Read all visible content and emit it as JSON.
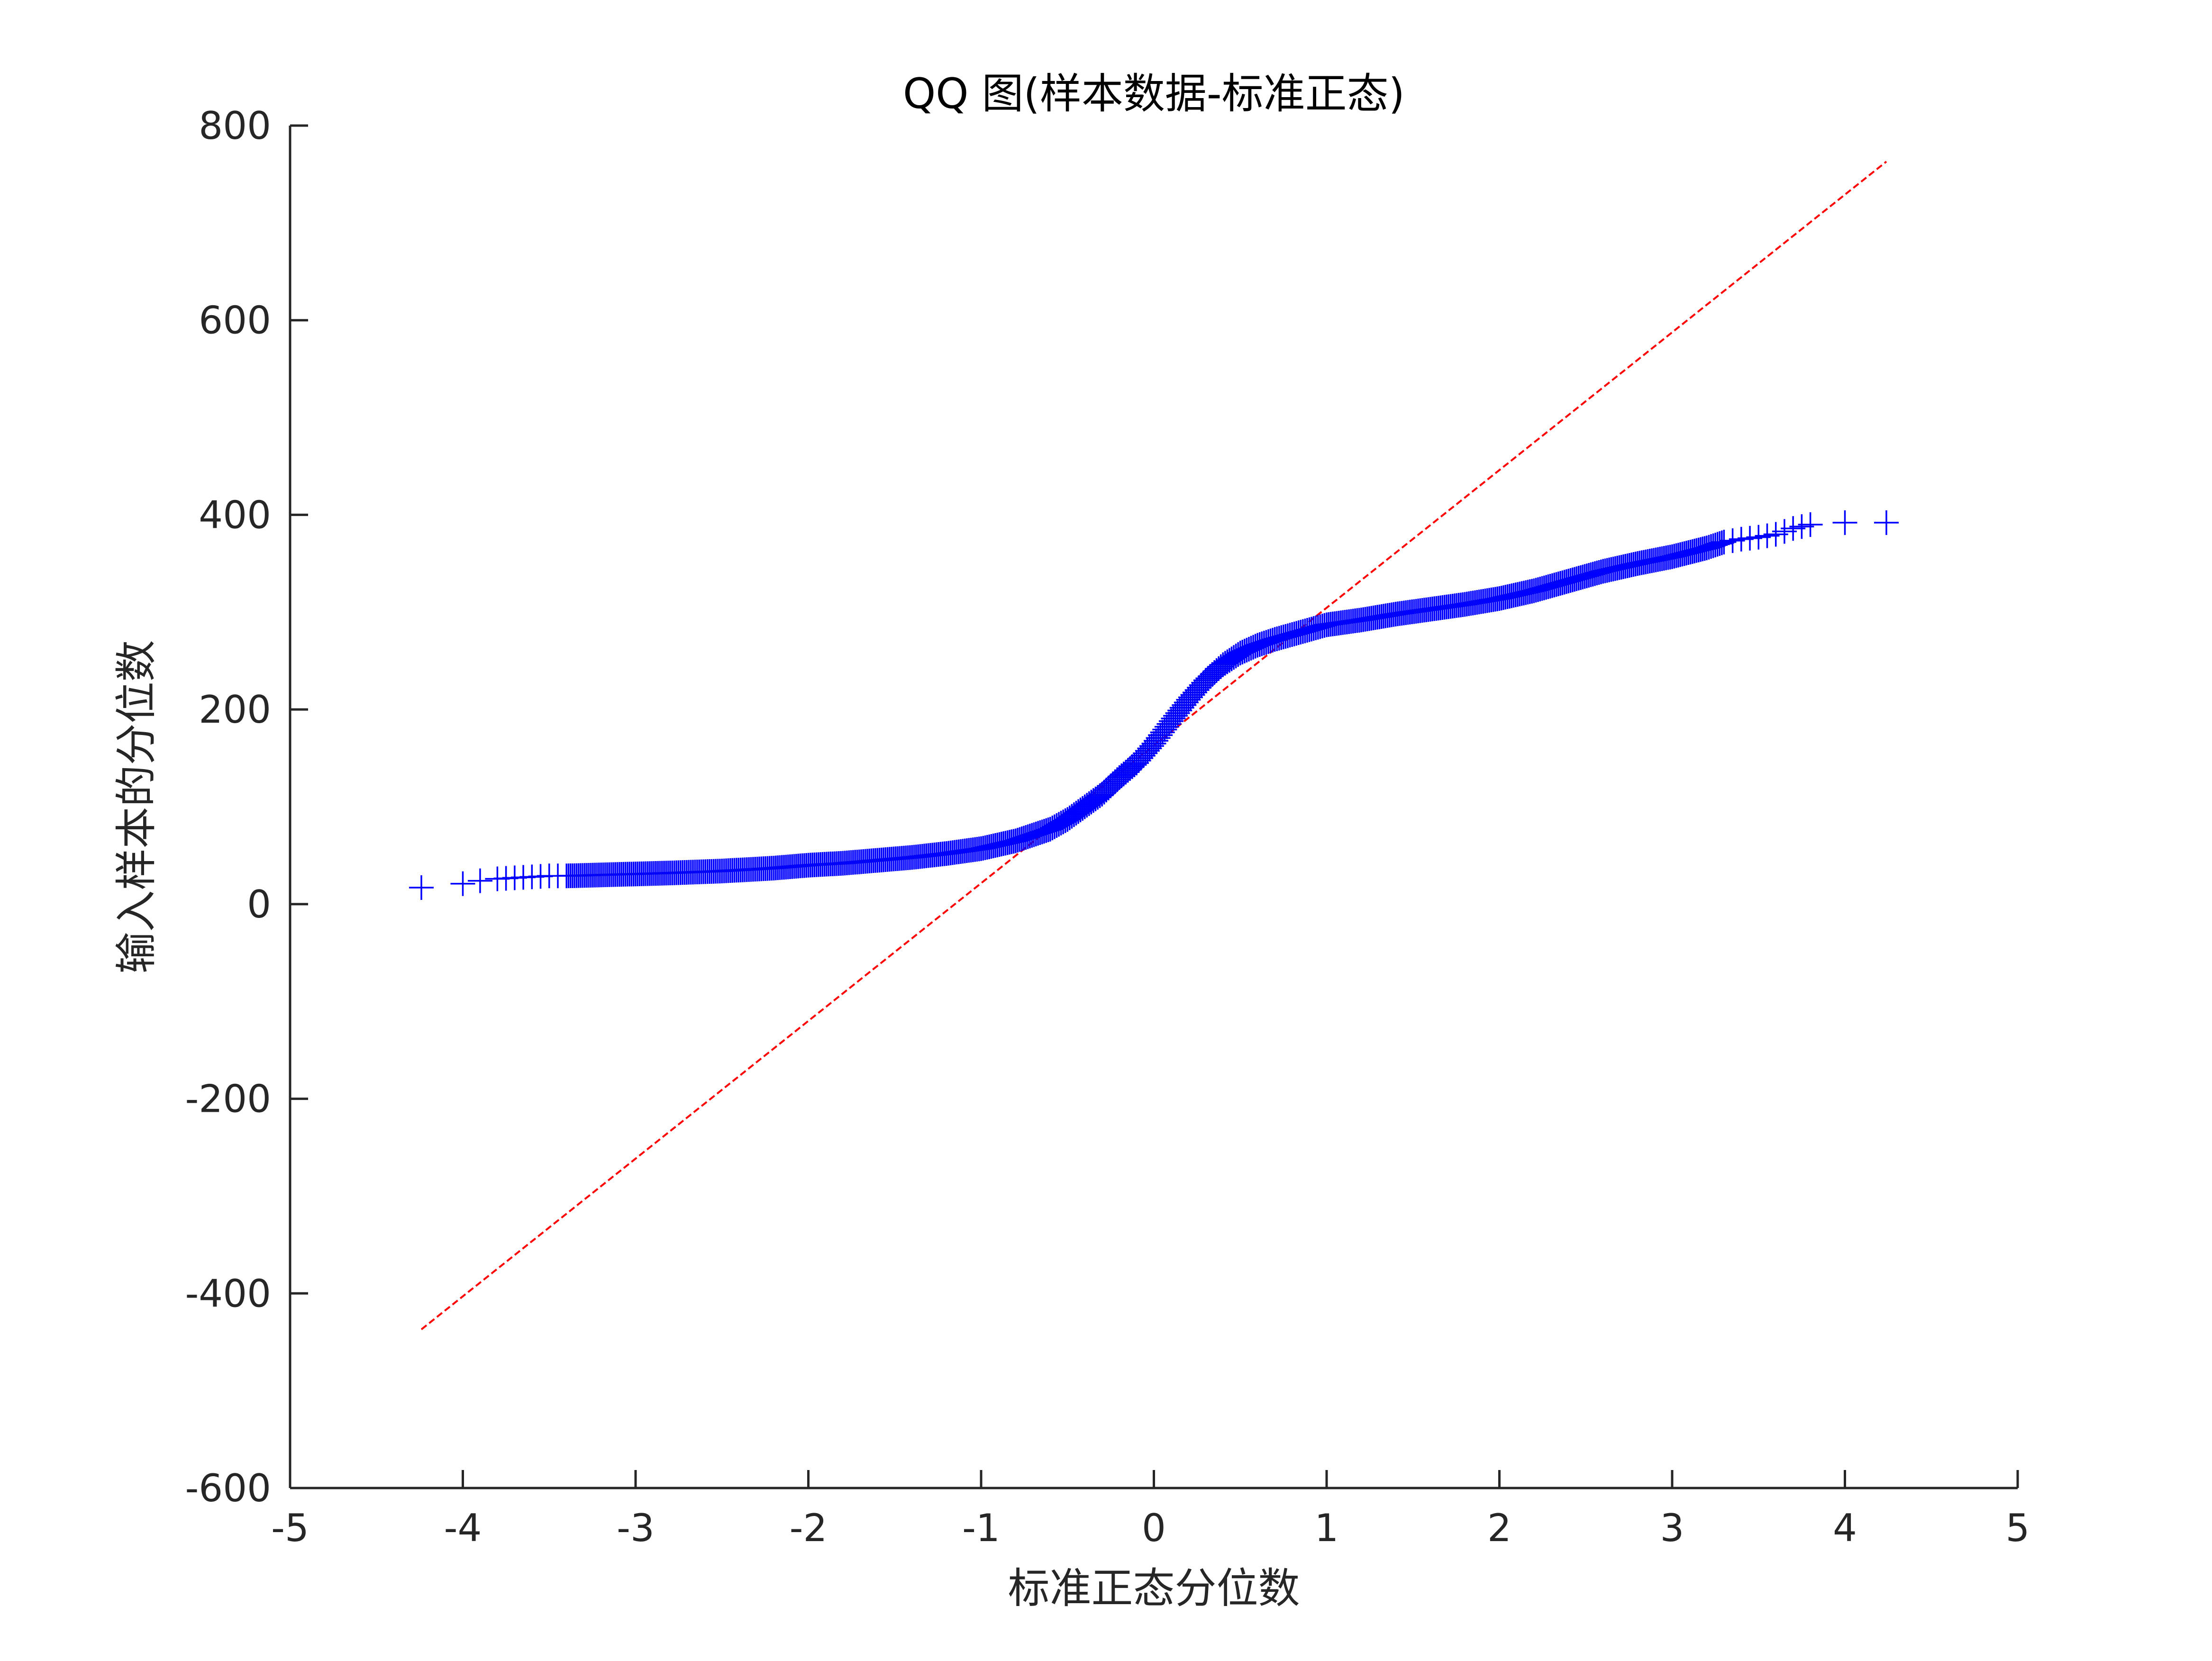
{
  "chart_data": {
    "type": "scatter",
    "title": "QQ 图(样本数据-标准正态)",
    "xlabel": "标准正态分位数",
    "ylabel": "输入样本的分位数",
    "xlim": [
      -5,
      5
    ],
    "ylim": [
      -600,
      800
    ],
    "xticks": [
      "-5",
      "-4",
      "-3",
      "-2",
      "-1",
      "0",
      "1",
      "2",
      "3",
      "4",
      "5"
    ],
    "yticks": [
      "-600",
      "-400",
      "-200",
      "0",
      "200",
      "400",
      "600",
      "800"
    ],
    "grid": false,
    "marker": "+",
    "colors": {
      "points": "#0000ff",
      "reference_line": "#ff0000",
      "axes": "#262626"
    },
    "series": [
      {
        "kind": "points",
        "x": [
          -4.24,
          -4.0,
          -3.9,
          -3.8,
          -3.7,
          -3.6,
          -3.5,
          -3.4,
          -3.2,
          -3.0,
          -2.8,
          -2.5,
          -2.2,
          -2.0,
          -1.8,
          -1.6,
          -1.4,
          -1.2,
          -1.0,
          -0.8,
          -0.6,
          -0.5,
          -0.4,
          -0.3,
          -0.2,
          -0.1,
          0.0,
          0.1,
          0.2,
          0.3,
          0.4,
          0.5,
          0.6,
          0.7,
          0.8,
          0.9,
          1.0,
          1.2,
          1.4,
          1.6,
          1.8,
          2.0,
          2.2,
          2.4,
          2.6,
          2.8,
          3.0,
          3.2,
          3.3,
          3.4,
          3.5,
          3.6,
          3.7,
          3.8,
          4.0,
          4.24
        ],
        "y": [
          17,
          21,
          24,
          26,
          27,
          28,
          29,
          29,
          30,
          31,
          32,
          34,
          37,
          40,
          42,
          45,
          48,
          52,
          57,
          65,
          77,
          87,
          100,
          113,
          130,
          145,
          165,
          188,
          210,
          230,
          246,
          258,
          266,
          272,
          277,
          282,
          287,
          292,
          298,
          303,
          308,
          314,
          322,
          332,
          342,
          350,
          357,
          366,
          372,
          375,
          377,
          380,
          386,
          390,
          392,
          392
        ]
      },
      {
        "kind": "reference-line",
        "x": [
          -4.24,
          4.24
        ],
        "y": [
          -437,
          763
        ]
      }
    ]
  }
}
